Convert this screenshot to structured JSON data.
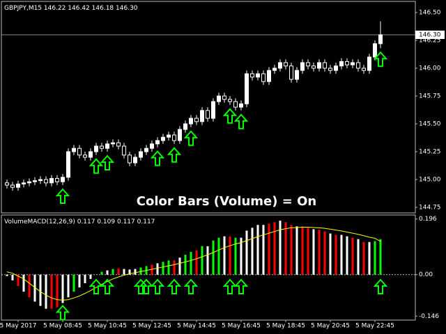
{
  "chart_data": [
    {
      "type": "candlestick",
      "title": "GBPJPY,M15",
      "quote": [
        "146.22",
        "146.42",
        "146.18",
        "146.30"
      ],
      "annotation": "Color Bars (Volume) = On",
      "ohlc": [
        [
          144.97,
          145.0,
          144.92,
          144.95
        ],
        [
          144.95,
          144.98,
          144.9,
          144.93
        ],
        [
          144.93,
          144.99,
          144.9,
          144.96
        ],
        [
          144.96,
          145.0,
          144.93,
          144.97
        ],
        [
          144.97,
          145.01,
          144.94,
          144.98
        ],
        [
          144.98,
          145.02,
          144.95,
          144.99
        ],
        [
          144.99,
          145.03,
          144.96,
          145.0
        ],
        [
          145.0,
          145.03,
          144.94,
          144.97
        ],
        [
          144.97,
          145.04,
          144.94,
          145.01
        ],
        [
          145.01,
          145.04,
          144.95,
          144.98
        ],
        [
          144.98,
          145.05,
          144.95,
          145.02
        ],
        [
          145.02,
          145.28,
          144.99,
          145.25
        ],
        [
          145.25,
          145.31,
          145.22,
          145.28
        ],
        [
          145.28,
          145.31,
          145.19,
          145.22
        ],
        [
          145.22,
          145.25,
          145.17,
          145.2
        ],
        [
          145.2,
          145.28,
          145.17,
          145.25
        ],
        [
          145.25,
          145.33,
          145.22,
          145.3
        ],
        [
          145.3,
          145.33,
          145.25,
          145.28
        ],
        [
          145.28,
          145.35,
          145.25,
          145.32
        ],
        [
          145.32,
          145.36,
          145.29,
          145.33
        ],
        [
          145.33,
          145.36,
          145.27,
          145.3
        ],
        [
          145.3,
          145.33,
          145.19,
          145.22
        ],
        [
          145.22,
          145.25,
          145.12,
          145.15
        ],
        [
          145.15,
          145.23,
          145.12,
          145.2
        ],
        [
          145.2,
          145.28,
          145.17,
          145.25
        ],
        [
          145.25,
          145.31,
          145.22,
          145.28
        ],
        [
          145.28,
          145.35,
          145.25,
          145.32
        ],
        [
          145.32,
          145.38,
          145.29,
          145.35
        ],
        [
          145.35,
          145.41,
          145.32,
          145.38
        ],
        [
          145.38,
          145.43,
          145.35,
          145.4
        ],
        [
          145.4,
          145.43,
          145.32,
          145.35
        ],
        [
          145.35,
          145.48,
          145.32,
          145.45
        ],
        [
          145.45,
          145.53,
          145.42,
          145.5
        ],
        [
          145.5,
          145.58,
          145.47,
          145.55
        ],
        [
          145.55,
          145.58,
          145.49,
          145.52
        ],
        [
          145.52,
          145.65,
          145.49,
          145.62
        ],
        [
          145.62,
          145.65,
          145.52,
          145.55
        ],
        [
          145.55,
          145.73,
          145.52,
          145.7
        ],
        [
          145.7,
          145.78,
          145.67,
          145.75
        ],
        [
          145.75,
          145.78,
          145.69,
          145.72
        ],
        [
          145.72,
          145.75,
          145.67,
          145.7
        ],
        [
          145.7,
          145.73,
          145.62,
          145.65
        ],
        [
          145.65,
          145.71,
          145.62,
          145.68
        ],
        [
          145.68,
          145.98,
          145.65,
          145.95
        ],
        [
          145.95,
          145.98,
          145.89,
          145.92
        ],
        [
          145.92,
          145.98,
          145.89,
          145.95
        ],
        [
          145.95,
          145.98,
          145.85,
          145.88
        ],
        [
          145.88,
          146.01,
          145.85,
          145.98
        ],
        [
          145.98,
          146.03,
          145.95,
          146.0
        ],
        [
          146.0,
          146.08,
          145.97,
          146.05
        ],
        [
          146.05,
          146.08,
          145.99,
          146.02
        ],
        [
          146.02,
          146.05,
          145.87,
          145.9
        ],
        [
          145.9,
          146.01,
          145.87,
          145.98
        ],
        [
          145.98,
          146.08,
          145.95,
          146.05
        ],
        [
          146.05,
          146.08,
          145.99,
          146.02
        ],
        [
          146.02,
          146.05,
          145.97,
          146.0
        ],
        [
          146.0,
          146.08,
          145.97,
          146.05
        ],
        [
          146.05,
          146.08,
          145.97,
          146.0
        ],
        [
          146.0,
          146.03,
          145.95,
          145.98
        ],
        [
          145.98,
          146.05,
          145.95,
          146.02
        ],
        [
          146.02,
          146.09,
          145.99,
          146.06
        ],
        [
          146.06,
          146.09,
          146.0,
          146.03
        ],
        [
          146.03,
          146.08,
          146.0,
          146.05
        ],
        [
          146.05,
          146.08,
          145.97,
          146.0
        ],
        [
          146.0,
          146.03,
          145.95,
          145.98
        ],
        [
          145.98,
          146.13,
          145.95,
          146.1
        ],
        [
          146.1,
          146.25,
          146.07,
          146.22
        ],
        [
          146.22,
          146.42,
          146.18,
          146.3
        ]
      ],
      "buy_signals": [
        10,
        16,
        18,
        27,
        30,
        33,
        40,
        42,
        67
      ],
      "signal_color": "#00ff00",
      "current_price": {
        "value": 146.3,
        "label": "146.30"
      },
      "ylim": [
        144.7,
        146.6
      ],
      "yticks": [
        {
          "value": 146.5,
          "label": "146.50"
        },
        146.25,
        {
          "value": 146,
          "label": "146.00"
        },
        145.75,
        {
          "value": 145.5,
          "label": "145.50"
        },
        145.25,
        {
          "value": 145,
          "label": "145.00"
        },
        144.75
      ]
    },
    {
      "type": "bar",
      "title": "VolumeMACD(12,26,9)",
      "readings": [
        "0.117",
        "0.109",
        "0.117",
        "0.117"
      ],
      "categories": [
        null,
        null,
        "5 May 2017",
        null,
        null,
        null,
        null,
        null,
        null,
        null,
        "5 May 08:45",
        null,
        null,
        null,
        null,
        null,
        null,
        null,
        "5 May 10:45",
        null,
        null,
        null,
        null,
        null,
        null,
        null,
        "5 May 12:45",
        null,
        null,
        null,
        null,
        null,
        null,
        null,
        "5 May 14:45",
        null,
        null,
        null,
        null,
        null,
        null,
        null,
        "5 May 16:45",
        null,
        null,
        null,
        null,
        null,
        null,
        null,
        "5 May 18:45",
        null,
        null,
        null,
        null,
        null,
        null,
        null,
        "5 May 20:45",
        null,
        null,
        null,
        null,
        null,
        null,
        null,
        "5 May 22:45",
        null
      ],
      "series": [
        {
          "values": [
            -0.005,
            -0.02,
            -0.04,
            -0.06,
            -0.08,
            -0.095,
            -0.11,
            -0.12,
            -0.12,
            -0.115,
            -0.1,
            -0.08,
            -0.06,
            -0.045,
            -0.03,
            -0.015,
            0,
            0.01,
            0.015,
            0.02,
            0.022,
            0.02,
            0.018,
            0.02,
            0.025,
            0.03,
            0.035,
            0.04,
            0.045,
            0.05,
            0.05,
            0.06,
            0.07,
            0.08,
            0.085,
            0.1,
            0.1,
            0.12,
            0.13,
            0.135,
            0.135,
            0.13,
            0.13,
            0.155,
            0.165,
            0.175,
            0.175,
            0.18,
            0.185,
            0.19,
            0.185,
            0.175,
            0.17,
            0.17,
            0.165,
            0.16,
            0.158,
            0.152,
            0.145,
            0.14,
            0.14,
            0.135,
            0.13,
            0.125,
            0.115,
            0.115,
            0.118,
            0.125
          ],
          "colors": [
            "white",
            "white",
            "red",
            "white",
            "red",
            "white",
            "white",
            "white",
            "red",
            "red",
            "white",
            "white",
            "lime",
            "white",
            "white",
            "white",
            "lime",
            "lime",
            "white",
            "lime",
            "red",
            "white",
            "white",
            "white",
            "lime",
            "lime",
            "red",
            "white",
            "lime",
            "lime",
            "red",
            "white",
            "lime",
            "lime",
            "red",
            "lime",
            "white",
            "lime",
            "lime",
            "white",
            "red",
            "lime",
            "white",
            "white",
            "white",
            "white",
            "white",
            "red",
            "red",
            "white",
            "red",
            "red",
            "white",
            "red",
            "red",
            "white",
            "red",
            "red",
            "white",
            "red",
            "white",
            "white",
            "red",
            "white",
            "red",
            "white",
            "lime",
            "lime"
          ]
        },
        {
          "type": "line",
          "color": "#ffff00",
          "values": [
            0.01,
            0.005,
            -0.005,
            -0.015,
            -0.03,
            -0.045,
            -0.06,
            -0.072,
            -0.082,
            -0.088,
            -0.09,
            -0.088,
            -0.082,
            -0.075,
            -0.066,
            -0.056,
            -0.045,
            -0.034,
            -0.024,
            -0.015,
            -0.008,
            -0.002,
            0.003,
            0.007,
            0.011,
            0.015,
            0.019,
            0.023,
            0.027,
            0.031,
            0.035,
            0.04,
            0.045,
            0.05,
            0.056,
            0.063,
            0.07,
            0.078,
            0.087,
            0.095,
            0.102,
            0.108,
            0.113,
            0.12,
            0.127,
            0.134,
            0.14,
            0.146,
            0.152,
            0.158,
            0.162,
            0.165,
            0.166,
            0.167,
            0.167,
            0.166,
            0.165,
            0.163,
            0.16,
            0.157,
            0.154,
            0.15,
            0.146,
            0.142,
            0.137,
            0.132,
            0.128,
            0.117
          ]
        }
      ],
      "buy_signals": [
        10,
        16,
        18,
        24,
        25,
        27,
        30,
        33,
        40,
        42,
        67
      ],
      "signal_color": "#00ff00",
      "ylim": [
        -0.16,
        0.21
      ],
      "yticks": [
        0.196,
        {
          "value": 0,
          "label": "0.00"
        },
        -0.146
      ]
    }
  ]
}
